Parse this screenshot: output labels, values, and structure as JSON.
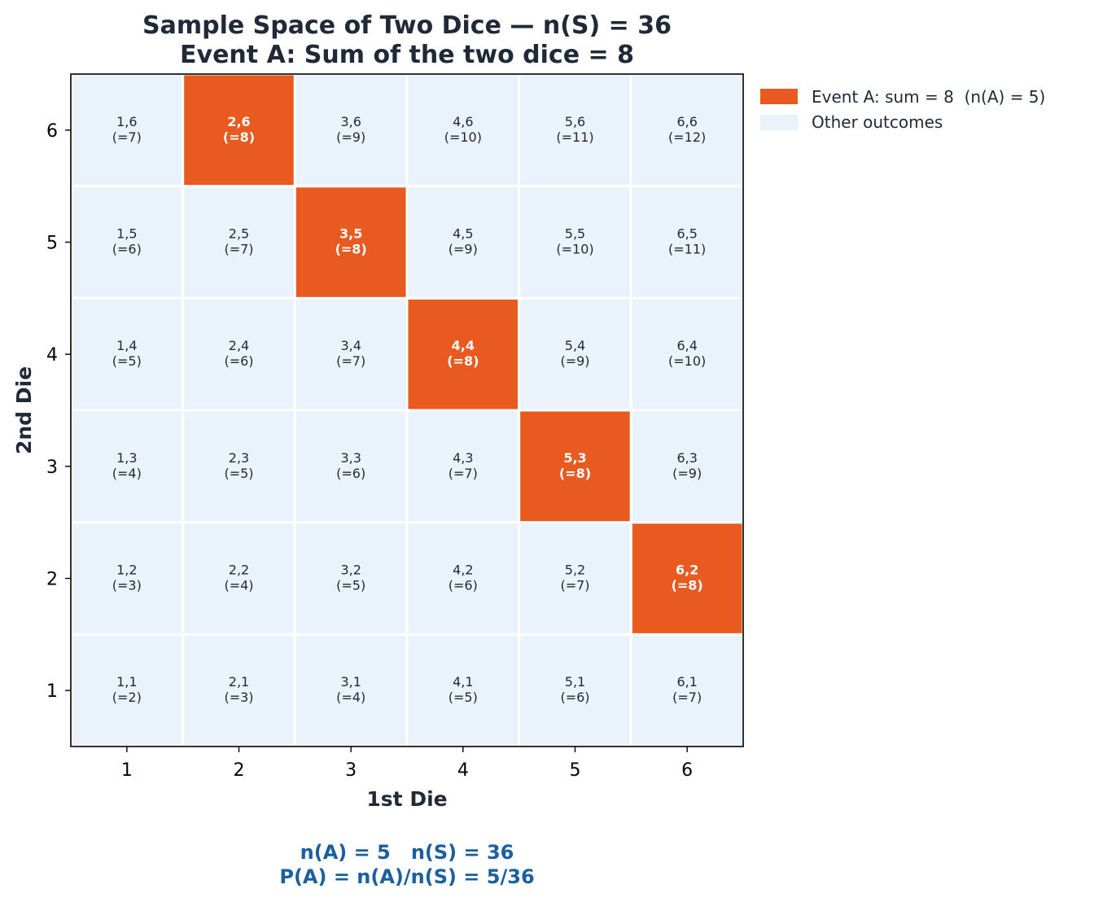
{
  "chart_data": {
    "type": "heatmap",
    "title": [
      "Sample Space of Two Dice — n(S) = 36",
      "Event A: Sum of the two dice = 8"
    ],
    "xlabel": "1st Die",
    "ylabel": "2nd Die",
    "x_ticks": [
      "1",
      "2",
      "3",
      "4",
      "5",
      "6"
    ],
    "y_ticks": [
      "1",
      "2",
      "3",
      "4",
      "5",
      "6"
    ],
    "xlim": [
      0.5,
      6.5
    ],
    "ylim": [
      0.5,
      6.5
    ],
    "grid": false,
    "legend_position": "outside-top-right",
    "legend": [
      {
        "label": "Event A: sum = 8  (n(A) = 5)",
        "color": "#e85a20"
      },
      {
        "label": "Other outcomes",
        "color": "#eaf2fb"
      }
    ],
    "colors": {
      "event": "#e85a20",
      "other": "#eaf2fb",
      "summary": "#1a5fa0"
    },
    "cells": [
      {
        "x": 1,
        "y": 1,
        "label": "1,1",
        "sum": "(=2)",
        "event": false
      },
      {
        "x": 2,
        "y": 1,
        "label": "2,1",
        "sum": "(=3)",
        "event": false
      },
      {
        "x": 3,
        "y": 1,
        "label": "3,1",
        "sum": "(=4)",
        "event": false
      },
      {
        "x": 4,
        "y": 1,
        "label": "4,1",
        "sum": "(=5)",
        "event": false
      },
      {
        "x": 5,
        "y": 1,
        "label": "5,1",
        "sum": "(=6)",
        "event": false
      },
      {
        "x": 6,
        "y": 1,
        "label": "6,1",
        "sum": "(=7)",
        "event": false
      },
      {
        "x": 1,
        "y": 2,
        "label": "1,2",
        "sum": "(=3)",
        "event": false
      },
      {
        "x": 2,
        "y": 2,
        "label": "2,2",
        "sum": "(=4)",
        "event": false
      },
      {
        "x": 3,
        "y": 2,
        "label": "3,2",
        "sum": "(=5)",
        "event": false
      },
      {
        "x": 4,
        "y": 2,
        "label": "4,2",
        "sum": "(=6)",
        "event": false
      },
      {
        "x": 5,
        "y": 2,
        "label": "5,2",
        "sum": "(=7)",
        "event": false
      },
      {
        "x": 6,
        "y": 2,
        "label": "6,2",
        "sum": "(=8)",
        "event": true
      },
      {
        "x": 1,
        "y": 3,
        "label": "1,3",
        "sum": "(=4)",
        "event": false
      },
      {
        "x": 2,
        "y": 3,
        "label": "2,3",
        "sum": "(=5)",
        "event": false
      },
      {
        "x": 3,
        "y": 3,
        "label": "3,3",
        "sum": "(=6)",
        "event": false
      },
      {
        "x": 4,
        "y": 3,
        "label": "4,3",
        "sum": "(=7)",
        "event": false
      },
      {
        "x": 5,
        "y": 3,
        "label": "5,3",
        "sum": "(=8)",
        "event": true
      },
      {
        "x": 6,
        "y": 3,
        "label": "6,3",
        "sum": "(=9)",
        "event": false
      },
      {
        "x": 1,
        "y": 4,
        "label": "1,4",
        "sum": "(=5)",
        "event": false
      },
      {
        "x": 2,
        "y": 4,
        "label": "2,4",
        "sum": "(=6)",
        "event": false
      },
      {
        "x": 3,
        "y": 4,
        "label": "3,4",
        "sum": "(=7)",
        "event": false
      },
      {
        "x": 4,
        "y": 4,
        "label": "4,4",
        "sum": "(=8)",
        "event": true
      },
      {
        "x": 5,
        "y": 4,
        "label": "5,4",
        "sum": "(=9)",
        "event": false
      },
      {
        "x": 6,
        "y": 4,
        "label": "6,4",
        "sum": "(=10)",
        "event": false
      },
      {
        "x": 1,
        "y": 5,
        "label": "1,5",
        "sum": "(=6)",
        "event": false
      },
      {
        "x": 2,
        "y": 5,
        "label": "2,5",
        "sum": "(=7)",
        "event": false
      },
      {
        "x": 3,
        "y": 5,
        "label": "3,5",
        "sum": "(=8)",
        "event": true
      },
      {
        "x": 4,
        "y": 5,
        "label": "4,5",
        "sum": "(=9)",
        "event": false
      },
      {
        "x": 5,
        "y": 5,
        "label": "5,5",
        "sum": "(=10)",
        "event": false
      },
      {
        "x": 6,
        "y": 5,
        "label": "6,5",
        "sum": "(=11)",
        "event": false
      },
      {
        "x": 1,
        "y": 6,
        "label": "1,6",
        "sum": "(=7)",
        "event": false
      },
      {
        "x": 2,
        "y": 6,
        "label": "2,6",
        "sum": "(=8)",
        "event": true
      },
      {
        "x": 3,
        "y": 6,
        "label": "3,6",
        "sum": "(=9)",
        "event": false
      },
      {
        "x": 4,
        "y": 6,
        "label": "4,6",
        "sum": "(=10)",
        "event": false
      },
      {
        "x": 5,
        "y": 6,
        "label": "5,6",
        "sum": "(=11)",
        "event": false
      },
      {
        "x": 6,
        "y": 6,
        "label": "6,6",
        "sum": "(=12)",
        "event": false
      }
    ],
    "annotations": [
      "n(A) = 5   n(S) = 36",
      "P(A) = n(A)/n(S) = 5/36"
    ]
  }
}
